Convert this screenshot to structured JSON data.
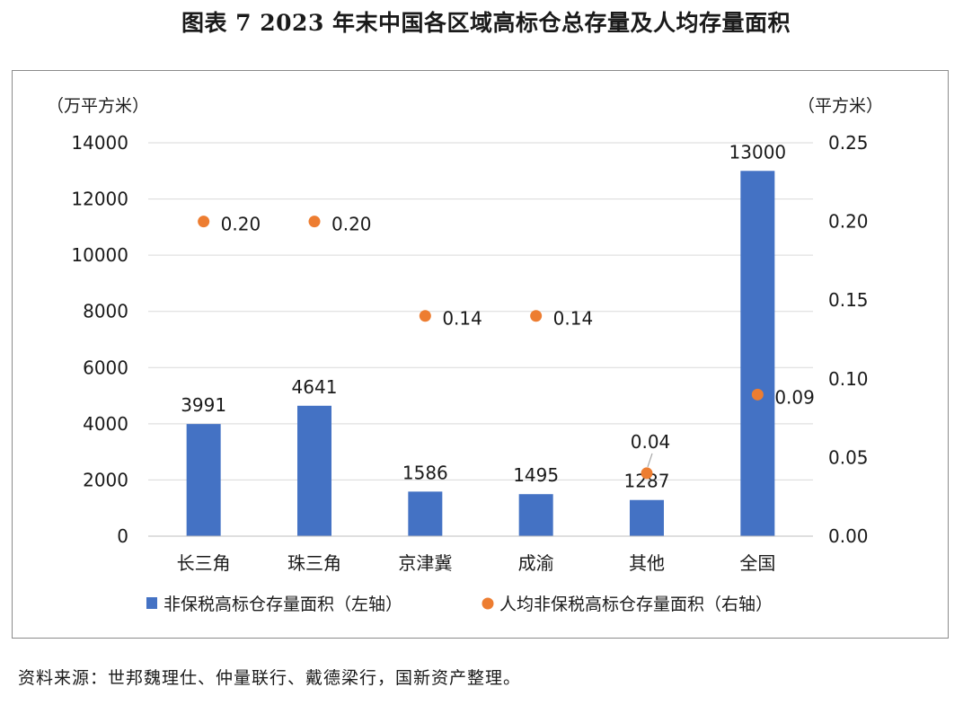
{
  "title": "图表 7  2023 年末中国各区域高标仓总存量及人均存量面积",
  "source": "资料来源：世邦魏理仕、仲量联行、戴德梁行，国新资产整理。",
  "chart_data": {
    "type": "bar",
    "categories": [
      "长三角",
      "珠三角",
      "京津冀",
      "成渝",
      "其他",
      "全国"
    ],
    "series": [
      {
        "name": "非保税高标仓存量面积（左轴）",
        "type": "bar",
        "axis": "left",
        "color": "#4472c4",
        "values": [
          3991,
          4641,
          1586,
          1495,
          1287,
          13000
        ],
        "labels": [
          "3991",
          "4641",
          "1586",
          "1495",
          "1287",
          "13000"
        ]
      },
      {
        "name": "人均非保税高标仓存量面积（右轴）",
        "type": "scatter",
        "axis": "right",
        "color": "#ed7d31",
        "values": [
          0.2,
          0.2,
          0.14,
          0.14,
          0.04,
          0.09
        ],
        "labels": [
          "0.20",
          "0.20",
          "0.14",
          "0.14",
          "0.04",
          "0.09"
        ]
      }
    ],
    "y_left": {
      "unit": "（万平方米）",
      "ylim": [
        0,
        14000
      ],
      "ticks": [
        "0",
        "2000",
        "4000",
        "6000",
        "8000",
        "10000",
        "12000",
        "14000"
      ]
    },
    "y_right": {
      "unit": "（平方米）",
      "ylim": [
        0,
        0.25
      ],
      "ticks": [
        "0.00",
        "0.05",
        "0.10",
        "0.15",
        "0.20",
        "0.25"
      ]
    },
    "grid": true,
    "legend_position": "bottom"
  }
}
